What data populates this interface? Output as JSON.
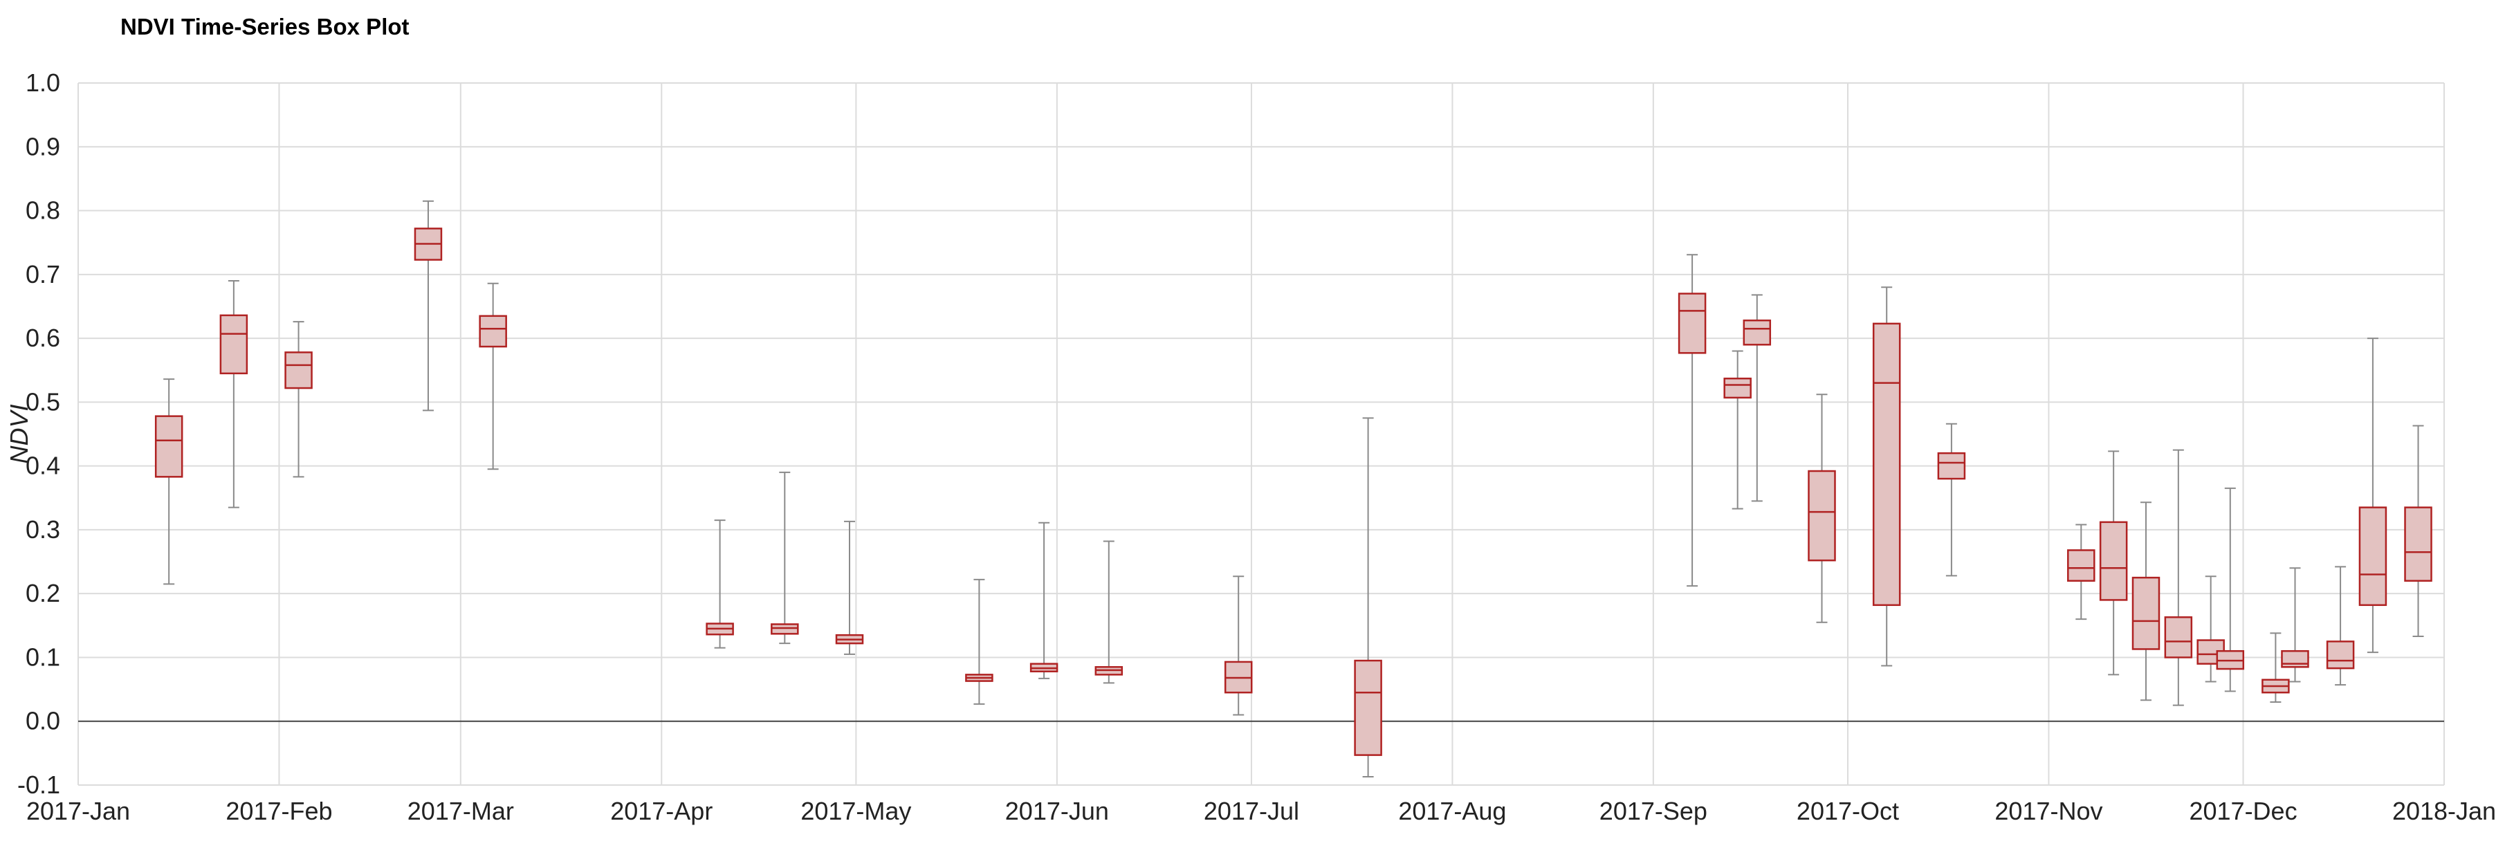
{
  "chart_data": {
    "type": "box",
    "title": "NDVI Time-Series Box Plot",
    "xlabel": "",
    "ylabel": "NDVI",
    "ylim": [
      -0.1,
      1.0
    ],
    "xlim": [
      "2017-01-01",
      "2018-01-01"
    ],
    "y_ticks": [
      "-0.1",
      "0.0",
      "0.1",
      "0.2",
      "0.3",
      "0.4",
      "0.5",
      "0.6",
      "0.7",
      "0.8",
      "0.9",
      "1.0"
    ],
    "x_ticks": [
      {
        "date": "2017-01-01",
        "label": "2017-Jan"
      },
      {
        "date": "2017-02-01",
        "label": "2017-Feb"
      },
      {
        "date": "2017-03-01",
        "label": "2017-Mar"
      },
      {
        "date": "2017-04-01",
        "label": "2017-Apr"
      },
      {
        "date": "2017-05-01",
        "label": "2017-May"
      },
      {
        "date": "2017-06-01",
        "label": "2017-Jun"
      },
      {
        "date": "2017-07-01",
        "label": "2017-Jul"
      },
      {
        "date": "2017-08-01",
        "label": "2017-Aug"
      },
      {
        "date": "2017-09-01",
        "label": "2017-Sep"
      },
      {
        "date": "2017-10-01",
        "label": "2017-Oct"
      },
      {
        "date": "2017-11-01",
        "label": "2017-Nov"
      },
      {
        "date": "2017-12-01",
        "label": "2017-Dec"
      },
      {
        "date": "2018-01-01",
        "label": "2018-Jan"
      }
    ],
    "grid": true,
    "boxes": [
      {
        "date": "2017-01-15",
        "min": 0.215,
        "q1": 0.383,
        "median": 0.44,
        "q3": 0.478,
        "max": 0.536
      },
      {
        "date": "2017-01-25",
        "min": 0.335,
        "q1": 0.545,
        "median": 0.607,
        "q3": 0.636,
        "max": 0.69
      },
      {
        "date": "2017-02-04",
        "min": 0.383,
        "q1": 0.522,
        "median": 0.558,
        "q3": 0.578,
        "max": 0.626
      },
      {
        "date": "2017-02-24",
        "min": 0.487,
        "q1": 0.723,
        "median": 0.748,
        "q3": 0.772,
        "max": 0.815
      },
      {
        "date": "2017-03-06",
        "min": 0.395,
        "q1": 0.587,
        "median": 0.615,
        "q3": 0.635,
        "max": 0.686
      },
      {
        "date": "2017-04-10",
        "min": 0.115,
        "q1": 0.136,
        "median": 0.145,
        "q3": 0.153,
        "max": 0.315
      },
      {
        "date": "2017-04-20",
        "min": 0.122,
        "q1": 0.137,
        "median": 0.146,
        "q3": 0.152,
        "max": 0.39
      },
      {
        "date": "2017-04-30",
        "min": 0.105,
        "q1": 0.122,
        "median": 0.128,
        "q3": 0.135,
        "max": 0.313
      },
      {
        "date": "2017-05-20",
        "min": 0.027,
        "q1": 0.063,
        "median": 0.068,
        "q3": 0.073,
        "max": 0.222
      },
      {
        "date": "2017-05-30",
        "min": 0.067,
        "q1": 0.078,
        "median": 0.083,
        "q3": 0.09,
        "max": 0.311
      },
      {
        "date": "2017-06-09",
        "min": 0.06,
        "q1": 0.073,
        "median": 0.08,
        "q3": 0.085,
        "max": 0.282
      },
      {
        "date": "2017-06-29",
        "min": 0.01,
        "q1": 0.045,
        "median": 0.068,
        "q3": 0.093,
        "max": 0.227
      },
      {
        "date": "2017-07-19",
        "min": -0.087,
        "q1": -0.053,
        "median": 0.045,
        "q3": 0.095,
        "max": 0.475
      },
      {
        "date": "2017-09-07",
        "min": 0.212,
        "q1": 0.577,
        "median": 0.643,
        "q3": 0.67,
        "max": 0.731
      },
      {
        "date": "2017-09-14",
        "min": 0.333,
        "q1": 0.507,
        "median": 0.527,
        "q3": 0.537,
        "max": 0.58
      },
      {
        "date": "2017-09-17",
        "min": 0.345,
        "q1": 0.59,
        "median": 0.615,
        "q3": 0.628,
        "max": 0.668
      },
      {
        "date": "2017-09-27",
        "min": 0.155,
        "q1": 0.252,
        "median": 0.328,
        "q3": 0.392,
        "max": 0.512
      },
      {
        "date": "2017-10-07",
        "min": 0.087,
        "q1": 0.182,
        "median": 0.53,
        "q3": 0.623,
        "max": 0.68
      },
      {
        "date": "2017-10-17",
        "min": 0.228,
        "q1": 0.38,
        "median": 0.405,
        "q3": 0.42,
        "max": 0.466
      },
      {
        "date": "2017-11-06",
        "min": 0.16,
        "q1": 0.22,
        "median": 0.24,
        "q3": 0.268,
        "max": 0.308
      },
      {
        "date": "2017-11-11",
        "min": 0.073,
        "q1": 0.19,
        "median": 0.24,
        "q3": 0.312,
        "max": 0.423
      },
      {
        "date": "2017-11-16",
        "min": 0.033,
        "q1": 0.113,
        "median": 0.157,
        "q3": 0.225,
        "max": 0.343
      },
      {
        "date": "2017-11-21",
        "min": 0.025,
        "q1": 0.1,
        "median": 0.125,
        "q3": 0.163,
        "max": 0.425
      },
      {
        "date": "2017-11-26",
        "min": 0.062,
        "q1": 0.09,
        "median": 0.105,
        "q3": 0.127,
        "max": 0.227
      },
      {
        "date": "2017-11-29",
        "min": 0.047,
        "q1": 0.082,
        "median": 0.095,
        "q3": 0.11,
        "max": 0.365
      },
      {
        "date": "2017-12-06",
        "min": 0.03,
        "q1": 0.045,
        "median": 0.055,
        "q3": 0.065,
        "max": 0.138
      },
      {
        "date": "2017-12-09",
        "min": 0.062,
        "q1": 0.085,
        "median": 0.09,
        "q3": 0.11,
        "max": 0.24
      },
      {
        "date": "2017-12-16",
        "min": 0.057,
        "q1": 0.083,
        "median": 0.095,
        "q3": 0.125,
        "max": 0.242
      },
      {
        "date": "2017-12-21",
        "min": 0.108,
        "q1": 0.182,
        "median": 0.23,
        "q3": 0.335,
        "max": 0.6
      },
      {
        "date": "2017-12-28",
        "min": 0.133,
        "q1": 0.22,
        "median": 0.265,
        "q3": 0.335,
        "max": 0.463
      }
    ],
    "colors": {
      "box_fill": "#e3c2c1",
      "box_stroke": "#b02222",
      "whisker": "#8a8a8a",
      "grid": "#dcdcdc",
      "zero_line": "#444444"
    }
  }
}
